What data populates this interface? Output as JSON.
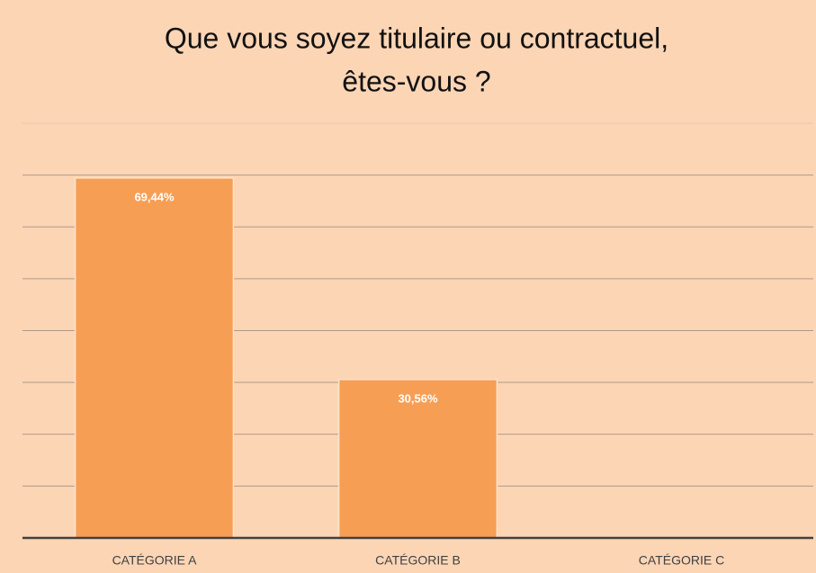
{
  "chart_data": {
    "type": "bar",
    "title": [
      "Que vous soyez titulaire ou contractuel,",
      "êtes-vous ?"
    ],
    "categories": [
      "CATÉGORIE A",
      "CATÉGORIE B",
      "CATÉGORIE C"
    ],
    "values": [
      69.44,
      30.56,
      null
    ],
    "value_labels": [
      "69,44%",
      "30,56%",
      null
    ],
    "color": "#f79e55",
    "ylim": [
      0,
      80
    ],
    "yticks": [
      0,
      10,
      20,
      30,
      40,
      50,
      60,
      70,
      80
    ],
    "grid": true
  }
}
